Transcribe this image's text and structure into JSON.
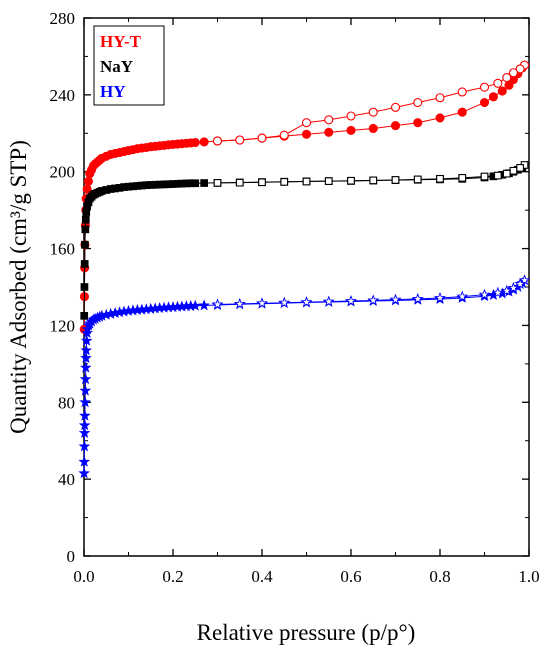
{
  "chart_data": {
    "type": "scatter",
    "xlabel": "Relative pressure (p/p°)",
    "ylabel": "Quantity Adsorbed (cm³/g STP)",
    "xlim": [
      0,
      1.0
    ],
    "ylim": [
      0,
      280
    ],
    "xticks": [
      "0.0",
      "0.2",
      "0.4",
      "0.6",
      "0.8",
      "1.0"
    ],
    "yticks": [
      "0",
      "40",
      "80",
      "120",
      "160",
      "200",
      "240",
      "280"
    ],
    "grid": false,
    "legend_placement": "top-left",
    "series": [
      {
        "name": "HY-T",
        "color": "#ff0000",
        "marker": "circle",
        "adsorption": [
          [
            0.0005,
            118
          ],
          [
            0.001,
            135
          ],
          [
            0.0015,
            150
          ],
          [
            0.002,
            162
          ],
          [
            0.003,
            172
          ],
          [
            0.004,
            180
          ],
          [
            0.005,
            186
          ],
          [
            0.007,
            191
          ],
          [
            0.01,
            195
          ],
          [
            0.013,
            199
          ],
          [
            0.017,
            201
          ],
          [
            0.021,
            203
          ],
          [
            0.025,
            204
          ],
          [
            0.03,
            205
          ],
          [
            0.035,
            206
          ],
          [
            0.04,
            207
          ],
          [
            0.05,
            208
          ],
          [
            0.06,
            209
          ],
          [
            0.07,
            209.5
          ],
          [
            0.08,
            210
          ],
          [
            0.09,
            210.5
          ],
          [
            0.1,
            211
          ],
          [
            0.11,
            211.5
          ],
          [
            0.12,
            212
          ],
          [
            0.13,
            212.3
          ],
          [
            0.14,
            212.6
          ],
          [
            0.15,
            213
          ],
          [
            0.16,
            213.2
          ],
          [
            0.17,
            213.5
          ],
          [
            0.18,
            213.7
          ],
          [
            0.19,
            214
          ],
          [
            0.2,
            214.2
          ],
          [
            0.21,
            214.4
          ],
          [
            0.22,
            214.6
          ],
          [
            0.23,
            214.8
          ],
          [
            0.24,
            215
          ],
          [
            0.25,
            215.2
          ],
          [
            0.27,
            215.5
          ],
          [
            0.3,
            216
          ],
          [
            0.35,
            216.5
          ],
          [
            0.4,
            217.5
          ],
          [
            0.45,
            218.5
          ],
          [
            0.5,
            219.5
          ],
          [
            0.55,
            220.5
          ],
          [
            0.6,
            221.5
          ],
          [
            0.65,
            222.5
          ],
          [
            0.7,
            224
          ],
          [
            0.75,
            225.5
          ],
          [
            0.8,
            228
          ],
          [
            0.85,
            231
          ],
          [
            0.9,
            236
          ],
          [
            0.92,
            239
          ],
          [
            0.94,
            242
          ],
          [
            0.955,
            245
          ],
          [
            0.965,
            248
          ],
          [
            0.975,
            251
          ],
          [
            0.985,
            254
          ]
        ],
        "desorption": [
          [
            0.99,
            255.5
          ],
          [
            0.98,
            253.5
          ],
          [
            0.965,
            251.5
          ],
          [
            0.95,
            249
          ],
          [
            0.93,
            246
          ],
          [
            0.9,
            244
          ],
          [
            0.85,
            241.5
          ],
          [
            0.8,
            238.5
          ],
          [
            0.75,
            236
          ],
          [
            0.7,
            233.5
          ],
          [
            0.65,
            231
          ],
          [
            0.6,
            229
          ],
          [
            0.55,
            227
          ],
          [
            0.5,
            225.5
          ],
          [
            0.45,
            219
          ],
          [
            0.4,
            217.5
          ],
          [
            0.35,
            216.5
          ],
          [
            0.3,
            216
          ]
        ]
      },
      {
        "name": "NaY",
        "color": "#000000",
        "marker": "square",
        "adsorption": [
          [
            0.0005,
            125
          ],
          [
            0.001,
            140
          ],
          [
            0.0015,
            152
          ],
          [
            0.002,
            162
          ],
          [
            0.003,
            170
          ],
          [
            0.004,
            175
          ],
          [
            0.005,
            179
          ],
          [
            0.007,
            182
          ],
          [
            0.01,
            184
          ],
          [
            0.013,
            186
          ],
          [
            0.017,
            187
          ],
          [
            0.021,
            188
          ],
          [
            0.025,
            188.5
          ],
          [
            0.03,
            189
          ],
          [
            0.035,
            189.5
          ],
          [
            0.04,
            190
          ],
          [
            0.05,
            190.5
          ],
          [
            0.06,
            191
          ],
          [
            0.07,
            191.3
          ],
          [
            0.08,
            191.6
          ],
          [
            0.09,
            192
          ],
          [
            0.1,
            192.2
          ],
          [
            0.11,
            192.4
          ],
          [
            0.12,
            192.6
          ],
          [
            0.13,
            192.8
          ],
          [
            0.14,
            193
          ],
          [
            0.15,
            193.1
          ],
          [
            0.16,
            193.2
          ],
          [
            0.17,
            193.3
          ],
          [
            0.18,
            193.4
          ],
          [
            0.19,
            193.5
          ],
          [
            0.2,
            193.6
          ],
          [
            0.21,
            193.7
          ],
          [
            0.22,
            193.8
          ],
          [
            0.23,
            193.9
          ],
          [
            0.24,
            194
          ],
          [
            0.25,
            194
          ],
          [
            0.27,
            194.1
          ],
          [
            0.3,
            194.2
          ],
          [
            0.35,
            194.4
          ],
          [
            0.4,
            194.6
          ],
          [
            0.45,
            194.8
          ],
          [
            0.5,
            195
          ],
          [
            0.55,
            195.1
          ],
          [
            0.6,
            195.2
          ],
          [
            0.65,
            195.4
          ],
          [
            0.7,
            195.6
          ],
          [
            0.75,
            195.8
          ],
          [
            0.8,
            196
          ],
          [
            0.85,
            196.3
          ],
          [
            0.9,
            197
          ],
          [
            0.92,
            197.6
          ],
          [
            0.94,
            198.4
          ],
          [
            0.955,
            199.2
          ],
          [
            0.965,
            200
          ],
          [
            0.975,
            201
          ],
          [
            0.985,
            202
          ]
        ],
        "desorption": [
          [
            0.99,
            203.5
          ],
          [
            0.98,
            202
          ],
          [
            0.965,
            200.5
          ],
          [
            0.95,
            199
          ],
          [
            0.93,
            198
          ],
          [
            0.9,
            197.5
          ],
          [
            0.85,
            196.8
          ],
          [
            0.8,
            196.3
          ],
          [
            0.75,
            196
          ],
          [
            0.7,
            195.7
          ],
          [
            0.65,
            195.5
          ],
          [
            0.6,
            195.3
          ],
          [
            0.55,
            195.1
          ],
          [
            0.5,
            194.9
          ],
          [
            0.45,
            194.7
          ],
          [
            0.4,
            194.5
          ],
          [
            0.35,
            194.3
          ],
          [
            0.3,
            194.2
          ]
        ]
      },
      {
        "name": "HY",
        "color": "#0000ff",
        "marker": "star",
        "adsorption": [
          [
            0.0003,
            43
          ],
          [
            0.0006,
            49
          ],
          [
            0.001,
            57
          ],
          [
            0.0013,
            64
          ],
          [
            0.0016,
            68
          ],
          [
            0.002,
            73
          ],
          [
            0.0025,
            80
          ],
          [
            0.003,
            86
          ],
          [
            0.0035,
            92
          ],
          [
            0.004,
            98
          ],
          [
            0.0045,
            103
          ],
          [
            0.005,
            107
          ],
          [
            0.006,
            112
          ],
          [
            0.007,
            116
          ],
          [
            0.008,
            118
          ],
          [
            0.01,
            120
          ],
          [
            0.013,
            121
          ],
          [
            0.017,
            122
          ],
          [
            0.021,
            123
          ],
          [
            0.025,
            123.5
          ],
          [
            0.03,
            124
          ],
          [
            0.035,
            124.5
          ],
          [
            0.04,
            125
          ],
          [
            0.05,
            125.5
          ],
          [
            0.06,
            126
          ],
          [
            0.07,
            126.4
          ],
          [
            0.08,
            126.8
          ],
          [
            0.09,
            127.2
          ],
          [
            0.1,
            127.5
          ],
          [
            0.11,
            127.8
          ],
          [
            0.12,
            128
          ],
          [
            0.13,
            128.2
          ],
          [
            0.14,
            128.4
          ],
          [
            0.15,
            128.6
          ],
          [
            0.16,
            128.8
          ],
          [
            0.17,
            129
          ],
          [
            0.18,
            129.2
          ],
          [
            0.19,
            129.4
          ],
          [
            0.2,
            129.5
          ],
          [
            0.21,
            129.7
          ],
          [
            0.22,
            129.8
          ],
          [
            0.23,
            130
          ],
          [
            0.24,
            130.1
          ],
          [
            0.25,
            130.2
          ],
          [
            0.27,
            130.4
          ],
          [
            0.3,
            130.6
          ],
          [
            0.35,
            131
          ],
          [
            0.4,
            131.3
          ],
          [
            0.45,
            131.6
          ],
          [
            0.5,
            131.9
          ],
          [
            0.55,
            132.2
          ],
          [
            0.6,
            132.4
          ],
          [
            0.65,
            132.7
          ],
          [
            0.7,
            133
          ],
          [
            0.75,
            133.3
          ],
          [
            0.8,
            133.7
          ],
          [
            0.85,
            134.3
          ],
          [
            0.9,
            135.2
          ],
          [
            0.92,
            135.8
          ],
          [
            0.94,
            136.6
          ],
          [
            0.955,
            137.6
          ],
          [
            0.965,
            138.6
          ],
          [
            0.975,
            140
          ],
          [
            0.985,
            142
          ]
        ],
        "desorption": [
          [
            0.99,
            143.5
          ],
          [
            0.98,
            141.5
          ],
          [
            0.965,
            139.5
          ],
          [
            0.95,
            138
          ],
          [
            0.93,
            137
          ],
          [
            0.9,
            136
          ],
          [
            0.85,
            135
          ],
          [
            0.8,
            134.3
          ],
          [
            0.75,
            133.8
          ],
          [
            0.7,
            133.4
          ],
          [
            0.65,
            133
          ],
          [
            0.6,
            132.7
          ],
          [
            0.55,
            132.4
          ],
          [
            0.5,
            132.1
          ],
          [
            0.45,
            131.8
          ],
          [
            0.4,
            131.5
          ],
          [
            0.35,
            131.2
          ],
          [
            0.3,
            130.9
          ]
        ]
      }
    ]
  }
}
